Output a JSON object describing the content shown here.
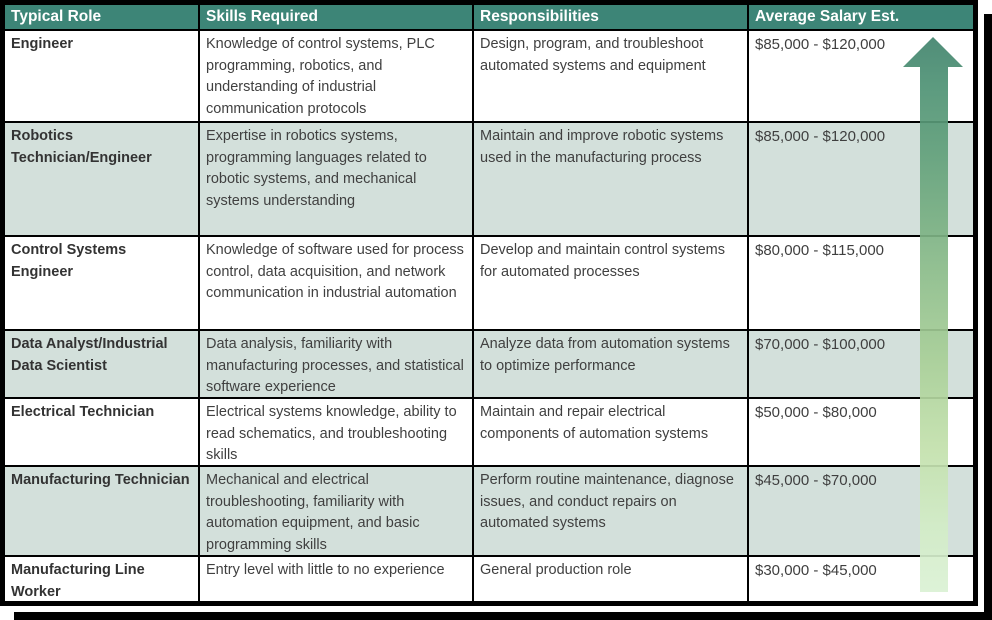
{
  "colors": {
    "header_bg": "#3d8577",
    "header_text": "#ffffff",
    "row_bg": "#ffffff",
    "row_alt_bg": "#d3e0db",
    "border": "#000000",
    "body_text": "#404040",
    "arrow_gradient_top": "#41836d",
    "arrow_gradient_bottom": "#daf1d4"
  },
  "table": {
    "columns": [
      "Typical Role",
      "Skills Required",
      "Responsibilities",
      "Average Salary Est."
    ],
    "rows": [
      {
        "role": "Engineer",
        "skills": "Knowledge of control systems, PLC programming, robotics, and understanding of industrial communication protocols",
        "responsibilities": "Design, program, and troubleshoot automated systems and equipment",
        "salary": "$85,000 - $120,000"
      },
      {
        "role": "Robotics Technician/Engineer",
        "skills": "Expertise in robotics systems, programming languages related to robotic systems, and mechanical systems understanding",
        "responsibilities": "Maintain and improve robotic systems used in the manufacturing process",
        "salary": "$85,000 - $120,000"
      },
      {
        "role": "Control Systems Engineer",
        "skills": "Knowledge of software used for process control, data acquisition, and network communication in industrial automation",
        "responsibilities": "Develop and maintain control systems for automated processes",
        "salary": "$80,000 - $115,000"
      },
      {
        "role": "Data Analyst/Industrial Data Scientist",
        "skills": "Data analysis, familiarity with manufacturing processes, and statistical software experience",
        "responsibilities": "Analyze data from automation systems to optimize performance",
        "salary": "$70,000 - $100,000"
      },
      {
        "role": "Electrical Technician",
        "skills": "Electrical systems knowledge, ability to read schematics, and troubleshooting skills",
        "responsibilities": "Maintain and repair electrical components of automation systems",
        "salary": "$50,000 - $80,000"
      },
      {
        "role": "Manufacturing Technician",
        "skills": "Mechanical and electrical troubleshooting, familiarity with automation equipment, and basic programming skills",
        "responsibilities": "Perform routine maintenance, diagnose issues, and conduct repairs on automated systems",
        "salary": "$45,000 - $70,000"
      },
      {
        "role": "Manufacturing Line Worker",
        "skills": "Entry level with little to no experience",
        "responsibilities": "General production role",
        "salary": "$30,000 - $45,000"
      }
    ]
  },
  "chart_data": {
    "type": "table",
    "columns": [
      "Typical Role",
      "Skills Required",
      "Responsibilities",
      "Average Salary Est."
    ],
    "rows": [
      [
        "Engineer",
        "Knowledge of control systems, PLC programming, robotics, and understanding of industrial communication protocols",
        "Design, program, and troubleshoot automated systems and equipment",
        "$85,000 - $120,000"
      ],
      [
        "Robotics Technician/Engineer",
        "Expertise in robotics systems, programming languages related to robotic systems, and mechanical systems understanding",
        "Maintain and improve robotic systems used in the manufacturing process",
        "$85,000 - $120,000"
      ],
      [
        "Control Systems Engineer",
        "Knowledge of software used for process control, data acquisition, and network communication in industrial automation",
        "Develop and maintain control systems for automated processes",
        "$80,000 - $115,000"
      ],
      [
        "Data Analyst/Industrial Data Scientist",
        "Data analysis, familiarity with manufacturing processes, and statistical software experience",
        "Analyze data from automation systems to optimize performance",
        "$70,000 - $100,000"
      ],
      [
        "Electrical Technician",
        "Electrical systems knowledge, ability to read schematics, and troubleshooting skills",
        "Maintain and repair electrical components of automation systems",
        "$50,000 - $80,000"
      ],
      [
        "Manufacturing Technician",
        "Mechanical and electrical troubleshooting, familiarity with automation equipment, and basic programming skills",
        "Perform routine maintenance, diagnose issues, and conduct repairs on automated systems",
        "$45,000 - $70,000"
      ],
      [
        "Manufacturing Line Worker",
        "Entry level with little to no experience",
        "General production role",
        "$30,000 - $45,000"
      ]
    ],
    "annotations": [
      "Upward gradient arrow alongside salary column indicating increasing salary toward top roles"
    ]
  }
}
